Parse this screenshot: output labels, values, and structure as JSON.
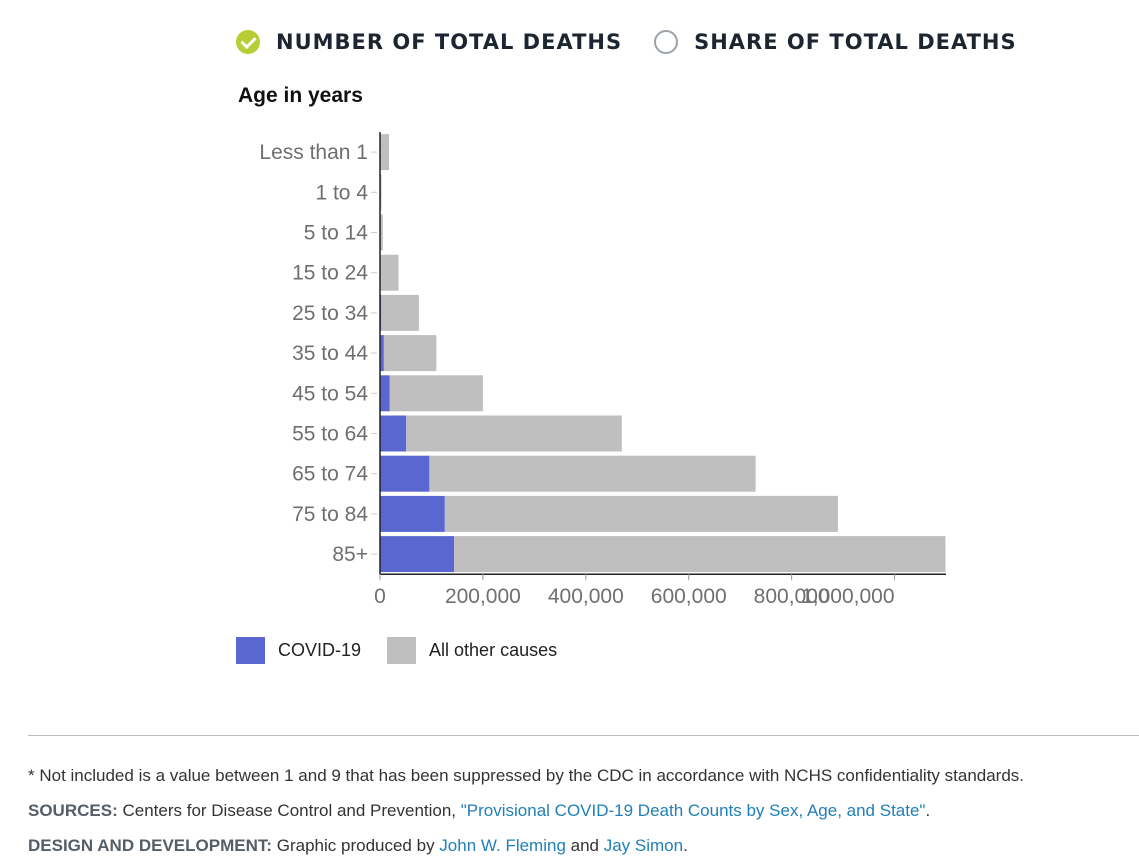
{
  "toggles": [
    {
      "label": "NUMBER OF TOTAL DEATHS",
      "selected": true
    },
    {
      "label": "SHARE OF TOTAL DEATHS",
      "selected": false
    }
  ],
  "colors": {
    "covid": "#5a67d0",
    "other": "#bfbfbf",
    "selected_toggle": "#b6cd34"
  },
  "chart_data": {
    "type": "bar",
    "orientation": "horizontal",
    "stacked": true,
    "ylabel": "Age in years",
    "categories": [
      "Less than 1",
      "1 to 4",
      "5 to 14",
      "15 to 24",
      "25 to 34",
      "35 to 44",
      "45 to 54",
      "55 to 64",
      "65 to 74",
      "75 to 84",
      "85+"
    ],
    "series": [
      {
        "name": "COVID-19",
        "values": [
          50,
          20,
          60,
          1000,
          2500,
          7500,
          19000,
          51000,
          96000,
          126000,
          144000
        ]
      },
      {
        "name": "All other causes",
        "values": [
          17500,
          3000,
          5500,
          35000,
          73000,
          102000,
          181000,
          419000,
          634000,
          764000,
          955000
        ]
      }
    ],
    "xlim": [
      0,
      1100000
    ],
    "xticks": [
      0,
      200000,
      400000,
      600000,
      800000,
      1000000
    ],
    "xtick_labels": [
      "0",
      "200,000",
      "400,000",
      "600,000",
      "800,000",
      "1,000,000"
    ],
    "legend": "bottom-left",
    "grid": false
  },
  "notes": {
    "footnote": "* Not included is a value between 1 and 9 that has been suppressed by the CDC in accordance with NCHS confidentiality standards.",
    "sources_label": "SOURCES:",
    "sources_text": "Centers for Disease Control and Prevention, ",
    "sources_link": "\"Provisional COVID-19 Death Counts by Sex, Age, and State\"",
    "sources_end": ".",
    "design_label": "DESIGN AND DEVELOPMENT:",
    "design_text": "Graphic produced by ",
    "design_link1": "John W. Fleming",
    "design_and": " and ",
    "design_link2": "Jay Simon",
    "design_end": "."
  }
}
